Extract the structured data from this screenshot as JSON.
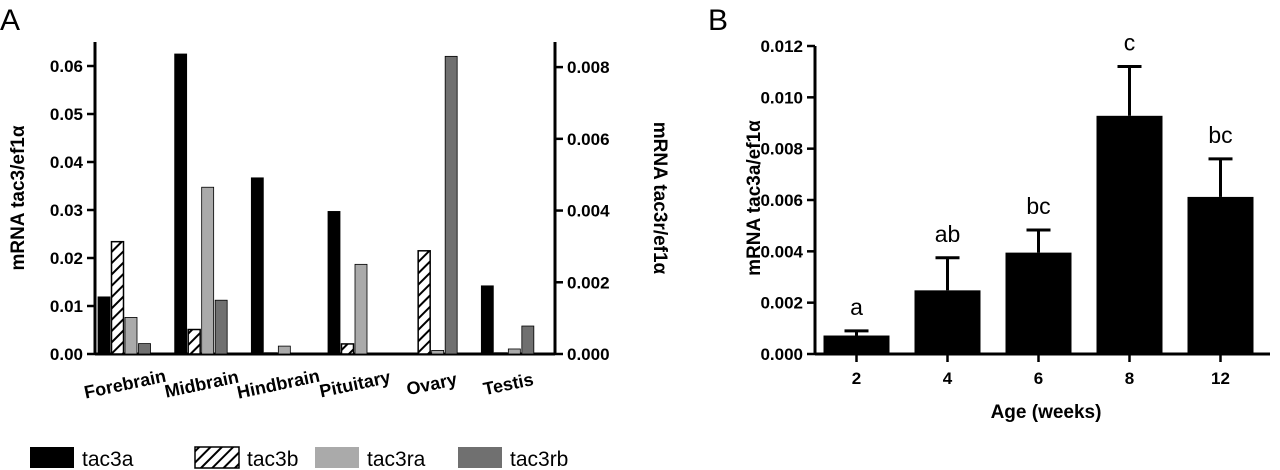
{
  "chart_data": [
    {
      "panel_label": "A",
      "type": "bar",
      "categories": [
        "Forebrain",
        "Midbrain",
        "Hindbrain",
        "Pituitary",
        "Ovary",
        "Testis"
      ],
      "ylabel_left": "mRNA tac3/ef1α",
      "ylabel_right": "mRNA tac3r/ef1α",
      "ylim_left": [
        0,
        0.065
      ],
      "ylim_right": [
        0,
        0.0087
      ],
      "yticks_left": [
        "0.00",
        "0.01",
        "0.02",
        "0.03",
        "0.04",
        "0.05",
        "0.06"
      ],
      "yticks_right": [
        "0.000",
        "0.002",
        "0.004",
        "0.006",
        "0.008"
      ],
      "legend_position": "bottom",
      "series": [
        {
          "name": "tac3a",
          "axis": "left",
          "color": "#000000",
          "pattern": "solid",
          "values": [
            0.0119,
            0.0625,
            0.0367,
            0.0297,
            0.0,
            0.0142
          ]
        },
        {
          "name": "tac3b",
          "axis": "left",
          "color": "#000000",
          "pattern": "hatched",
          "values": [
            0.0234,
            0.0051,
            0.0002,
            0.0021,
            0.0215,
            0.0002
          ]
        },
        {
          "name": "tac3ra",
          "axis": "right",
          "color": "#aaaaaa",
          "pattern": "solid",
          "values": [
            0.00102,
            0.00465,
            0.00022,
            0.0025,
            0.0001,
            0.00014
          ]
        },
        {
          "name": "tac3rb",
          "axis": "right",
          "color": "#707070",
          "pattern": "solid",
          "values": [
            0.00029,
            0.0015,
            0.0,
            0.0,
            0.0083,
            0.00078
          ]
        }
      ]
    },
    {
      "panel_label": "B",
      "type": "bar",
      "categories": [
        "2",
        "4",
        "6",
        "8",
        "12"
      ],
      "xlabel": "Age (weeks)",
      "ylabel": "mRNA tac3a/ef1α",
      "ylim": [
        0,
        0.012
      ],
      "yticks": [
        "0.000",
        "0.002",
        "0.004",
        "0.006",
        "0.008",
        "0.010",
        "0.012"
      ],
      "bar_color": "#000000",
      "values": [
        0.00072,
        0.00248,
        0.00395,
        0.00928,
        0.00612
      ],
      "error_upper": [
        0.0009,
        0.00375,
        0.00483,
        0.0112,
        0.0076
      ],
      "significance_labels": [
        "a",
        "ab",
        "bc",
        "c",
        "bc"
      ]
    }
  ]
}
